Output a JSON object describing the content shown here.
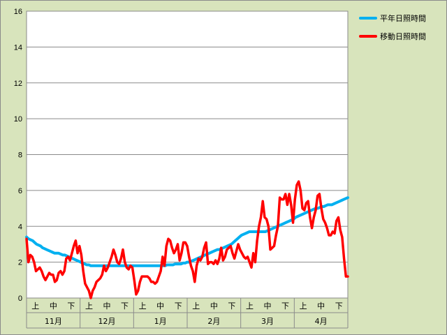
{
  "chart_data": {
    "type": "line",
    "title": "",
    "xlabel": "",
    "ylabel": "",
    "ylim": [
      0,
      16
    ],
    "yticks": [
      0,
      2,
      4,
      6,
      8,
      10,
      12,
      14,
      16
    ],
    "grid": true,
    "legend_position": "top-right",
    "months": [
      "11月",
      "12月",
      "1月",
      "2月",
      "3月",
      "4月"
    ],
    "periods": [
      "上",
      "中",
      "下"
    ],
    "series": [
      {
        "name": "平年日照時間",
        "color": "#00b0f0",
        "values": [
          3.4,
          3.3,
          3.25,
          3.2,
          3.1,
          3.0,
          2.95,
          2.9,
          2.8,
          2.75,
          2.7,
          2.65,
          2.6,
          2.55,
          2.5,
          2.5,
          2.5,
          2.45,
          2.4,
          2.4,
          2.35,
          2.3,
          2.25,
          2.2,
          2.15,
          2.1,
          2.05,
          2.0,
          1.95,
          1.9,
          1.85,
          1.85,
          1.8,
          1.8,
          1.8,
          1.8,
          1.8,
          1.8,
          1.8,
          1.8,
          1.8,
          1.8,
          1.8,
          1.8,
          1.8,
          1.8,
          1.8,
          1.8,
          1.8,
          1.8,
          1.8,
          1.8,
          1.8,
          1.8,
          1.8,
          1.8,
          1.8,
          1.8,
          1.8,
          1.8,
          1.8,
          1.8,
          1.8,
          1.8,
          1.8,
          1.8,
          1.8,
          1.8,
          1.8,
          1.8,
          1.85,
          1.85,
          1.85,
          1.85,
          1.9,
          1.9,
          1.9,
          1.9,
          1.95,
          1.95,
          2.0,
          2.0,
          2.05,
          2.1,
          2.15,
          2.2,
          2.25,
          2.3,
          2.35,
          2.4,
          2.45,
          2.5,
          2.55,
          2.6,
          2.65,
          2.7,
          2.7,
          2.75,
          2.8,
          2.85,
          2.9,
          2.95,
          3.0,
          3.1,
          3.2,
          3.3,
          3.4,
          3.5,
          3.55,
          3.6,
          3.65,
          3.7,
          3.7,
          3.7,
          3.7,
          3.7,
          3.7,
          3.7,
          3.7,
          3.7,
          3.75,
          3.8,
          3.85,
          3.9,
          3.95,
          4.0,
          4.05,
          4.1,
          4.15,
          4.2,
          4.25,
          4.3,
          4.35,
          4.4,
          4.5,
          4.55,
          4.6,
          4.65,
          4.7,
          4.75,
          4.8,
          4.85,
          4.9,
          4.95,
          5.0,
          5.0,
          5.05,
          5.1,
          5.1,
          5.15,
          5.2,
          5.2,
          5.2,
          5.25,
          5.3,
          5.35,
          5.4,
          5.45,
          5.5,
          5.55,
          5.6
        ]
      },
      {
        "name": "移動日照時間",
        "color": "#ff0000",
        "values": [
          3.3,
          2.0,
          2.4,
          2.3,
          2.0,
          1.5,
          1.6,
          1.7,
          1.5,
          1.2,
          1.0,
          1.2,
          1.4,
          1.3,
          1.3,
          0.9,
          1.0,
          1.4,
          1.5,
          1.3,
          1.5,
          2.2,
          2.3,
          2.1,
          2.5,
          2.9,
          3.2,
          2.5,
          2.9,
          2.4,
          1.5,
          0.8,
          0.6,
          0.4,
          0.0,
          0.4,
          0.6,
          0.9,
          1.0,
          1.1,
          1.3,
          1.8,
          1.5,
          1.7,
          2.0,
          2.3,
          2.7,
          2.4,
          2.0,
          1.9,
          2.2,
          2.7,
          2.0,
          1.7,
          1.6,
          1.8,
          1.7,
          1.0,
          0.2,
          0.4,
          0.9,
          1.2,
          1.2,
          1.2,
          1.2,
          1.1,
          0.9,
          0.9,
          0.8,
          0.9,
          1.2,
          1.5,
          2.3,
          1.8,
          2.9,
          3.3,
          3.2,
          2.8,
          2.5,
          2.7,
          3.0,
          2.1,
          2.5,
          3.1,
          3.1,
          2.9,
          2.3,
          1.8,
          1.5,
          0.9,
          1.8,
          2.2,
          2.1,
          2.3,
          2.8,
          3.1,
          1.9,
          2.0,
          2.0,
          1.9,
          2.1,
          1.9,
          2.2,
          2.8,
          2.1,
          2.3,
          2.7,
          2.8,
          2.9,
          2.5,
          2.2,
          2.6,
          3.0,
          2.7,
          2.5,
          2.3,
          2.2,
          2.3,
          2.0,
          1.7,
          2.5,
          2.0,
          3.2,
          4.0,
          4.5,
          5.4,
          4.5,
          4.4,
          4.0,
          2.7,
          2.8,
          2.9,
          3.5,
          4.0,
          5.6,
          5.5,
          5.5,
          5.8,
          5.2,
          5.8,
          5.2,
          4.2,
          5.5,
          6.3,
          6.5,
          6.0,
          5.0,
          4.9,
          5.3,
          5.4,
          4.5,
          3.9,
          4.5,
          4.9,
          5.7,
          5.8,
          5.0,
          4.4,
          4.2,
          3.9,
          3.5,
          3.5,
          3.7,
          3.6,
          4.3,
          4.5,
          3.8,
          3.4,
          2.2,
          1.2,
          1.2
        ]
      }
    ]
  }
}
